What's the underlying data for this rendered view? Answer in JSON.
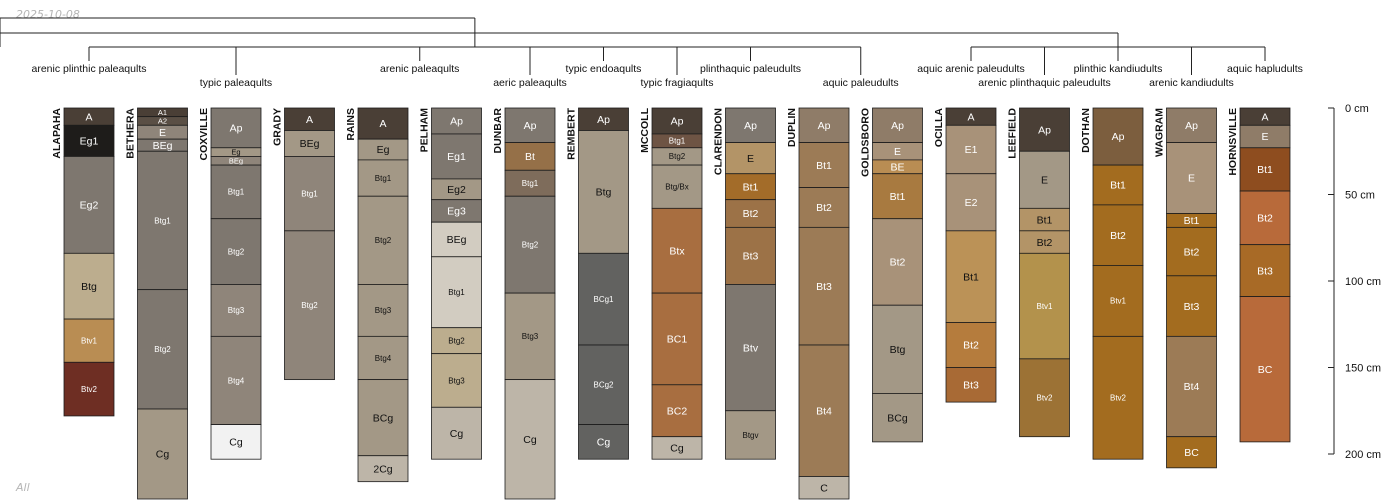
{
  "header": {
    "date": "2025-10-08"
  },
  "footer": {
    "note": "All"
  },
  "depth_axis": {
    "unit": "cm",
    "ticks": [
      {
        "depth": 0,
        "label": "0 cm"
      },
      {
        "depth": 50,
        "label": "50 cm"
      },
      {
        "depth": 100,
        "label": "100 cm"
      },
      {
        "depth": 150,
        "label": "150 cm"
      },
      {
        "depth": 200,
        "label": "200 cm"
      }
    ]
  },
  "taxa": [
    {
      "label": "arenic plinthic paleaqults",
      "profiles": [
        0
      ]
    },
    {
      "label": "typic paleaqults",
      "profiles": [
        1,
        2,
        3
      ]
    },
    {
      "label": "arenic paleaqults",
      "profiles": [
        4,
        5
      ]
    },
    {
      "label": "aeric paleaqults",
      "profiles": [
        6
      ]
    },
    {
      "label": "typic endoaqults",
      "profiles": [
        7
      ]
    },
    {
      "label": "typic fragiaqults",
      "profiles": [
        8
      ]
    },
    {
      "label": "plinthaquic paleudults",
      "profiles": [
        9
      ]
    },
    {
      "label": "aquic paleudults",
      "profiles": [
        10,
        11
      ]
    },
    {
      "label": "aquic arenic paleudults",
      "profiles": [
        12
      ]
    },
    {
      "label": "arenic plinthaquic paleudults",
      "profiles": [
        13
      ]
    },
    {
      "label": "plinthic kandiudults",
      "profiles": [
        14
      ]
    },
    {
      "label": "arenic kandiudults",
      "profiles": [
        15
      ]
    },
    {
      "label": "aquic hapludults",
      "profiles": [
        16
      ]
    }
  ],
  "profiles": [
    {
      "name": "ALAPAHA",
      "horizons": [
        {
          "name": "A",
          "top": 0,
          "bottom": 10,
          "color": "#4a3f36"
        },
        {
          "name": "Eg1",
          "top": 10,
          "bottom": 28,
          "color": "#1e1c1a"
        },
        {
          "name": "Eg2",
          "top": 28,
          "bottom": 84,
          "color": "#7e776f"
        },
        {
          "name": "Btg",
          "top": 84,
          "bottom": 122,
          "color": "#bcad8e"
        },
        {
          "name": "Btv1",
          "top": 122,
          "bottom": 147,
          "color": "#b98d53"
        },
        {
          "name": "Btv2",
          "top": 147,
          "bottom": 178,
          "color": "#6e2e23"
        }
      ]
    },
    {
      "name": "BETHERA",
      "horizons": [
        {
          "name": "A1",
          "top": 0,
          "bottom": 5,
          "color": "#4a3f36"
        },
        {
          "name": "A2",
          "top": 5,
          "bottom": 10,
          "color": "#5a4f45"
        },
        {
          "name": "E",
          "top": 10,
          "bottom": 18,
          "color": "#8f857a"
        },
        {
          "name": "BEg",
          "top": 18,
          "bottom": 25,
          "color": "#7e776f"
        },
        {
          "name": "Btg1",
          "top": 25,
          "bottom": 105,
          "color": "#7e776f"
        },
        {
          "name": "Btg2",
          "top": 105,
          "bottom": 174,
          "color": "#7e776f"
        },
        {
          "name": "Cg",
          "top": 174,
          "bottom": 230,
          "color": "#a39886"
        }
      ]
    },
    {
      "name": "COXVILLE",
      "horizons": [
        {
          "name": "Ap",
          "top": 0,
          "bottom": 23,
          "color": "#7e776f"
        },
        {
          "name": "Eg",
          "top": 23,
          "bottom": 28,
          "color": "#a39886"
        },
        {
          "name": "BEg",
          "top": 28,
          "bottom": 33,
          "color": "#8f857a"
        },
        {
          "name": "Btg1",
          "top": 33,
          "bottom": 64,
          "color": "#7e776f"
        },
        {
          "name": "Btg2",
          "top": 64,
          "bottom": 102,
          "color": "#7e776f"
        },
        {
          "name": "Btg3",
          "top": 102,
          "bottom": 132,
          "color": "#8f857a"
        },
        {
          "name": "Btg4",
          "top": 132,
          "bottom": 183,
          "color": "#8f857a"
        },
        {
          "name": "Cg",
          "top": 183,
          "bottom": 203,
          "color": "#f2f2f2"
        }
      ]
    },
    {
      "name": "GRADY",
      "horizons": [
        {
          "name": "A",
          "top": 0,
          "bottom": 13,
          "color": "#4a3f36"
        },
        {
          "name": "BEg",
          "top": 13,
          "bottom": 28,
          "color": "#a39886"
        },
        {
          "name": "Btg1",
          "top": 28,
          "bottom": 71,
          "color": "#8f857a"
        },
        {
          "name": "Btg2",
          "top": 71,
          "bottom": 157,
          "color": "#8f857a"
        }
      ]
    },
    {
      "name": "RAINS",
      "horizons": [
        {
          "name": "A",
          "top": 0,
          "bottom": 18,
          "color": "#4a3f36"
        },
        {
          "name": "Eg",
          "top": 18,
          "bottom": 30,
          "color": "#a39886"
        },
        {
          "name": "Btg1",
          "top": 30,
          "bottom": 51,
          "color": "#a39886"
        },
        {
          "name": "Btg2",
          "top": 51,
          "bottom": 102,
          "color": "#a39886"
        },
        {
          "name": "Btg3",
          "top": 102,
          "bottom": 132,
          "color": "#a39886"
        },
        {
          "name": "Btg4",
          "top": 132,
          "bottom": 157,
          "color": "#a39886"
        },
        {
          "name": "BCg",
          "top": 157,
          "bottom": 201,
          "color": "#a39886"
        },
        {
          "name": "2Cg",
          "top": 201,
          "bottom": 216,
          "color": "#bdb5a8"
        }
      ]
    },
    {
      "name": "PELHAM",
      "horizons": [
        {
          "name": "Ap",
          "top": 0,
          "bottom": 15,
          "color": "#7e776f"
        },
        {
          "name": "Eg1",
          "top": 15,
          "bottom": 41,
          "color": "#7e776f"
        },
        {
          "name": "Eg2",
          "top": 41,
          "bottom": 53,
          "color": "#a39886"
        },
        {
          "name": "Eg3",
          "top": 53,
          "bottom": 66,
          "color": "#7e776f"
        },
        {
          "name": "BEg",
          "top": 66,
          "bottom": 86,
          "color": "#d2ccc1"
        },
        {
          "name": "Btg1",
          "top": 86,
          "bottom": 127,
          "color": "#d2ccc1"
        },
        {
          "name": "Btg2",
          "top": 127,
          "bottom": 142,
          "color": "#bcad8e"
        },
        {
          "name": "Btg3",
          "top": 142,
          "bottom": 173,
          "color": "#bcad8e"
        },
        {
          "name": "Cg",
          "top": 173,
          "bottom": 203,
          "color": "#bdb5a8"
        }
      ]
    },
    {
      "name": "DUNBAR",
      "horizons": [
        {
          "name": "Ap",
          "top": 0,
          "bottom": 20,
          "color": "#7e776f"
        },
        {
          "name": "Bt",
          "top": 20,
          "bottom": 36,
          "color": "#957048"
        },
        {
          "name": "Btg1",
          "top": 36,
          "bottom": 51,
          "color": "#7e6c5b"
        },
        {
          "name": "Btg2",
          "top": 51,
          "bottom": 107,
          "color": "#7e776f"
        },
        {
          "name": "Btg3",
          "top": 107,
          "bottom": 157,
          "color": "#a39886"
        },
        {
          "name": "Cg",
          "top": 157,
          "bottom": 230,
          "color": "#bdb5a8"
        }
      ]
    },
    {
      "name": "REMBERT",
      "horizons": [
        {
          "name": "Ap",
          "top": 0,
          "bottom": 13,
          "color": "#4a3f36"
        },
        {
          "name": "Btg",
          "top": 13,
          "bottom": 84,
          "color": "#a39886"
        },
        {
          "name": "BCg1",
          "top": 84,
          "bottom": 137,
          "color": "#626260"
        },
        {
          "name": "BCg2",
          "top": 137,
          "bottom": 183,
          "color": "#626260"
        },
        {
          "name": "Cg",
          "top": 183,
          "bottom": 203,
          "color": "#626260"
        }
      ]
    },
    {
      "name": "MCCOLL",
      "horizons": [
        {
          "name": "Ap",
          "top": 0,
          "bottom": 15,
          "color": "#4a3f36"
        },
        {
          "name": "Btg1",
          "top": 15,
          "bottom": 23,
          "color": "#6e5444"
        },
        {
          "name": "Btg2",
          "top": 23,
          "bottom": 33,
          "color": "#a39886"
        },
        {
          "name": "Btg/Bx",
          "top": 33,
          "bottom": 58,
          "color": "#a39886"
        },
        {
          "name": "Btx",
          "top": 58,
          "bottom": 107,
          "color": "#a86e40"
        },
        {
          "name": "BC1",
          "top": 107,
          "bottom": 160,
          "color": "#a86e40"
        },
        {
          "name": "BC2",
          "top": 160,
          "bottom": 190,
          "color": "#a86e40"
        },
        {
          "name": "Cg",
          "top": 190,
          "bottom": 203,
          "color": "#bdb5a8"
        }
      ]
    },
    {
      "name": "CLARENDON",
      "horizons": [
        {
          "name": "Ap",
          "top": 0,
          "bottom": 20,
          "color": "#7e776f"
        },
        {
          "name": "E",
          "top": 20,
          "bottom": 38,
          "color": "#b39467"
        },
        {
          "name": "Bt1",
          "top": 38,
          "bottom": 53,
          "color": "#a36c29"
        },
        {
          "name": "Bt2",
          "top": 53,
          "bottom": 69,
          "color": "#9c7247"
        },
        {
          "name": "Bt3",
          "top": 69,
          "bottom": 102,
          "color": "#9c7247"
        },
        {
          "name": "Btv",
          "top": 102,
          "bottom": 175,
          "color": "#7e776f"
        },
        {
          "name": "Btgv",
          "top": 175,
          "bottom": 203,
          "color": "#a39886"
        }
      ]
    },
    {
      "name": "DUPLIN",
      "horizons": [
        {
          "name": "Ap",
          "top": 0,
          "bottom": 20,
          "color": "#8f7c68"
        },
        {
          "name": "Bt1",
          "top": 20,
          "bottom": 46,
          "color": "#9c7b56"
        },
        {
          "name": "Bt2",
          "top": 46,
          "bottom": 69,
          "color": "#9c7b56"
        },
        {
          "name": "Bt3",
          "top": 69,
          "bottom": 137,
          "color": "#9c7b56"
        },
        {
          "name": "Bt4",
          "top": 137,
          "bottom": 213,
          "color": "#9c7b56"
        },
        {
          "name": "C",
          "top": 213,
          "bottom": 230,
          "color": "#bdb5a8"
        }
      ]
    },
    {
      "name": "GOLDSBORO",
      "horizons": [
        {
          "name": "Ap",
          "top": 0,
          "bottom": 20,
          "color": "#8f7c68"
        },
        {
          "name": "E",
          "top": 20,
          "bottom": 30,
          "color": "#a89279"
        },
        {
          "name": "BE",
          "top": 30,
          "bottom": 38,
          "color": "#b98d53"
        },
        {
          "name": "Bt1",
          "top": 38,
          "bottom": 64,
          "color": "#a87a40"
        },
        {
          "name": "Bt2",
          "top": 64,
          "bottom": 114,
          "color": "#a89279"
        },
        {
          "name": "Btg",
          "top": 114,
          "bottom": 165,
          "color": "#a39886"
        },
        {
          "name": "BCg",
          "top": 165,
          "bottom": 193,
          "color": "#a39886"
        }
      ]
    },
    {
      "name": "OCILLA",
      "horizons": [
        {
          "name": "A",
          "top": 0,
          "bottom": 10,
          "color": "#4a3f36"
        },
        {
          "name": "E1",
          "top": 10,
          "bottom": 38,
          "color": "#a89279"
        },
        {
          "name": "E2",
          "top": 38,
          "bottom": 71,
          "color": "#a89279"
        },
        {
          "name": "Bt1",
          "top": 71,
          "bottom": 124,
          "color": "#bb9257"
        },
        {
          "name": "Bt2",
          "top": 124,
          "bottom": 150,
          "color": "#b57c3d"
        },
        {
          "name": "Bt3",
          "top": 150,
          "bottom": 170,
          "color": "#a86a35"
        }
      ]
    },
    {
      "name": "LEEFIELD",
      "horizons": [
        {
          "name": "Ap",
          "top": 0,
          "bottom": 25,
          "color": "#4a3f36"
        },
        {
          "name": "E",
          "top": 25,
          "bottom": 58,
          "color": "#a39886"
        },
        {
          "name": "Bt1",
          "top": 58,
          "bottom": 71,
          "color": "#b39467"
        },
        {
          "name": "Bt2",
          "top": 71,
          "bottom": 84,
          "color": "#b39467"
        },
        {
          "name": "Btv1",
          "top": 84,
          "bottom": 145,
          "color": "#b3924c"
        },
        {
          "name": "Btv2",
          "top": 145,
          "bottom": 190,
          "color": "#9c7235"
        }
      ]
    },
    {
      "name": "DOTHAN",
      "horizons": [
        {
          "name": "Ap",
          "top": 0,
          "bottom": 33,
          "color": "#7c5e3e"
        },
        {
          "name": "Bt1",
          "top": 33,
          "bottom": 56,
          "color": "#a36c1f"
        },
        {
          "name": "Bt2",
          "top": 56,
          "bottom": 91,
          "color": "#a36c1f"
        },
        {
          "name": "Btv1",
          "top": 91,
          "bottom": 132,
          "color": "#a36c1f"
        },
        {
          "name": "Btv2",
          "top": 132,
          "bottom": 203,
          "color": "#a36c1f"
        }
      ]
    },
    {
      "name": "WAGRAM",
      "horizons": [
        {
          "name": "Ap",
          "top": 0,
          "bottom": 20,
          "color": "#8f7c68"
        },
        {
          "name": "E",
          "top": 20,
          "bottom": 61,
          "color": "#a89279"
        },
        {
          "name": "Bt1",
          "top": 61,
          "bottom": 69,
          "color": "#a36c1f"
        },
        {
          "name": "Bt2",
          "top": 69,
          "bottom": 97,
          "color": "#a36c1f"
        },
        {
          "name": "Bt3",
          "top": 97,
          "bottom": 132,
          "color": "#a36c1f"
        },
        {
          "name": "Bt4",
          "top": 132,
          "bottom": 190,
          "color": "#9c7b56"
        },
        {
          "name": "BC",
          "top": 190,
          "bottom": 208,
          "color": "#a36c1f"
        }
      ]
    },
    {
      "name": "HORNSVILLE",
      "horizons": [
        {
          "name": "A",
          "top": 0,
          "bottom": 10,
          "color": "#4a3f36"
        },
        {
          "name": "E",
          "top": 10,
          "bottom": 23,
          "color": "#8f7c68"
        },
        {
          "name": "Bt1",
          "top": 23,
          "bottom": 48,
          "color": "#8e4d1f"
        },
        {
          "name": "Bt2",
          "top": 48,
          "bottom": 79,
          "color": "#b86a3a"
        },
        {
          "name": "Bt3",
          "top": 79,
          "bottom": 109,
          "color": "#a86a26"
        },
        {
          "name": "BC",
          "top": 109,
          "bottom": 193,
          "color": "#b86a3a"
        }
      ]
    }
  ]
}
